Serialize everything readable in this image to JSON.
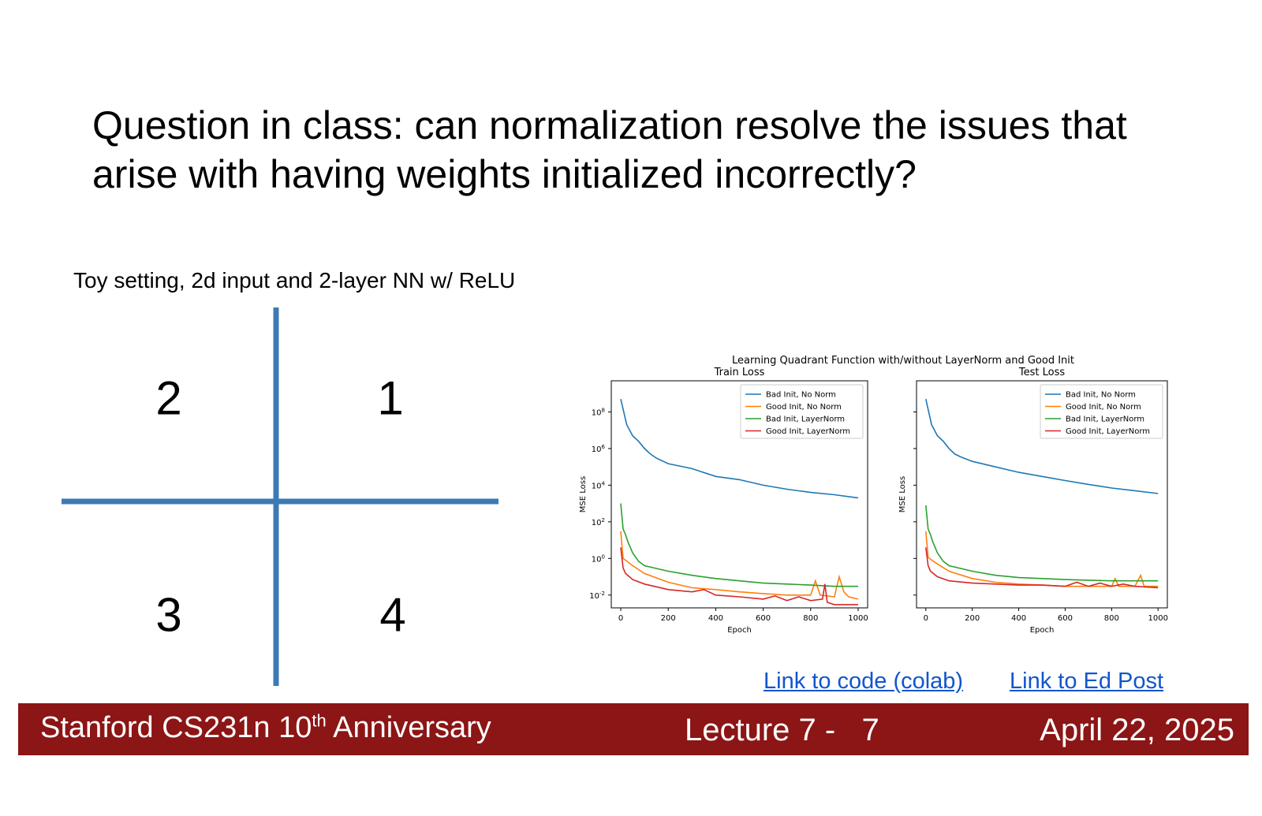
{
  "slide": {
    "title": "Question in class: can normalization resolve the issues that arise with having weights initialized incorrectly?",
    "subtitle": "Toy setting, 2d input and 2-layer NN w/ ReLU",
    "quadrants": [
      "1",
      "2",
      "3",
      "4"
    ],
    "links": {
      "code": "Link to code (colab)",
      "ed": "Link to Ed Post"
    },
    "footer": {
      "course": "Stanford CS231n 10",
      "course_sup": "th",
      "course_suffix": " Anniversary",
      "lecture": "Lecture 7 -   7",
      "date": "April 22, 2025"
    },
    "colors": {
      "footer_bg": "#8c1515",
      "axis_blue": "#3d7ab5",
      "link": "#1155cc"
    }
  },
  "chart_data": {
    "suptitle": "Learning Quadrant Function with/without LayerNorm and Good Init",
    "type": "line",
    "charts": [
      {
        "title": "Train Loss",
        "xlabel": "Epoch",
        "ylabel": "MSE Loss",
        "yscale": "log",
        "xlim": [
          -40,
          1040
        ],
        "ylim": [
          0.002,
          5000000000.0
        ],
        "xticks": [
          "0",
          "200",
          "400",
          "600",
          "800",
          "1000"
        ],
        "yticks": [
          "10^8",
          "10^6",
          "10^4",
          "10^2",
          "10^0",
          "10^-2"
        ],
        "legend": "top-right",
        "series": [
          {
            "name": "Bad Init, No Norm",
            "color": "#1f77b4",
            "x": [
              0,
              25,
              50,
              75,
              100,
              125,
              150,
              200,
              300,
              400,
              500,
              600,
              700,
              800,
              900,
              1000
            ],
            "y": [
              500000000.0,
              20000000.0,
              5000000.0,
              2500000.0,
              1000000.0,
              500000.0,
              300000.0,
              150000.0,
              80000.0,
              30000.0,
              20000.0,
              10000.0,
              6000.0,
              4000.0,
              3000.0,
              2000.0
            ]
          },
          {
            "name": "Good Init, No Norm",
            "color": "#ff7f0e",
            "x": [
              0,
              10,
              20,
              50,
              100,
              200,
              300,
              400,
              500,
              600,
              700,
              800,
              820,
              840,
              900,
              920,
              940,
              960,
              1000
            ],
            "y": [
              30,
              1.0,
              0.8,
              0.4,
              0.15,
              0.05,
              0.025,
              0.02,
              0.015,
              0.012,
              0.01,
              0.01,
              0.06,
              0.01,
              0.008,
              0.1,
              0.015,
              0.008,
              0.006
            ]
          },
          {
            "name": "Bad Init, LayerNorm",
            "color": "#2ca02c",
            "x": [
              0,
              10,
              20,
              30,
              40,
              50,
              75,
              100,
              200,
              300,
              400,
              500,
              600,
              700,
              800,
              900,
              1000
            ],
            "y": [
              1000,
              40,
              20,
              8,
              4,
              2,
              0.7,
              0.4,
              0.2,
              0.12,
              0.08,
              0.06,
              0.045,
              0.04,
              0.035,
              0.03,
              0.03
            ]
          },
          {
            "name": "Good Init, LayerNorm",
            "color": "#d62728",
            "x": [
              0,
              10,
              20,
              50,
              100,
              200,
              300,
              350,
              400,
              500,
              600,
              650,
              700,
              750,
              800,
              850,
              860,
              870,
              900,
              1000
            ],
            "y": [
              4,
              0.3,
              0.15,
              0.07,
              0.04,
              0.02,
              0.015,
              0.02,
              0.01,
              0.008,
              0.006,
              0.009,
              0.005,
              0.008,
              0.005,
              0.006,
              0.04,
              0.004,
              0.003,
              0.003
            ]
          }
        ]
      },
      {
        "title": "Test Loss",
        "xlabel": "Epoch",
        "ylabel": "MSE Loss",
        "yscale": "log",
        "xlim": [
          -40,
          1040
        ],
        "ylim": [
          0.002,
          5000000000.0
        ],
        "xticks": [
          "0",
          "200",
          "400",
          "600",
          "800",
          "1000"
        ],
        "yticks": [],
        "legend": "top-right",
        "series": [
          {
            "name": "Bad Init, No Norm",
            "color": "#1f77b4",
            "x": [
              0,
              25,
              50,
              75,
              100,
              125,
              150,
              200,
              300,
              400,
              500,
              600,
              700,
              800,
              900,
              1000
            ],
            "y": [
              500000000.0,
              20000000.0,
              5000000.0,
              2500000.0,
              1000000.0,
              500000.0,
              350000.0,
              200000.0,
              100000.0,
              50000.0,
              30000.0,
              18000.0,
              11000.0,
              7000.0,
              5000.0,
              3500.0
            ]
          },
          {
            "name": "Good Init, No Norm",
            "color": "#ff7f0e",
            "x": [
              0,
              10,
              20,
              50,
              100,
              200,
              300,
              400,
              500,
              600,
              700,
              800,
              815,
              830,
              900,
              925,
              940,
              1000
            ],
            "y": [
              30,
              1.2,
              0.9,
              0.5,
              0.2,
              0.08,
              0.05,
              0.04,
              0.035,
              0.03,
              0.03,
              0.03,
              0.08,
              0.03,
              0.03,
              0.12,
              0.03,
              0.03
            ]
          },
          {
            "name": "Bad Init, LayerNorm",
            "color": "#2ca02c",
            "x": [
              0,
              10,
              20,
              30,
              40,
              50,
              75,
              100,
              200,
              300,
              400,
              500,
              600,
              700,
              800,
              900,
              1000
            ],
            "y": [
              800,
              40,
              20,
              8,
              4,
              2,
              0.7,
              0.4,
              0.2,
              0.12,
              0.09,
              0.08,
              0.07,
              0.065,
              0.06,
              0.06,
              0.06
            ]
          },
          {
            "name": "Good Init, LayerNorm",
            "color": "#d62728",
            "x": [
              0,
              10,
              20,
              50,
              100,
              200,
              300,
              400,
              500,
              600,
              650,
              700,
              750,
              800,
              850,
              900,
              1000
            ],
            "y": [
              4,
              0.4,
              0.2,
              0.1,
              0.06,
              0.045,
              0.04,
              0.035,
              0.035,
              0.03,
              0.05,
              0.03,
              0.045,
              0.03,
              0.04,
              0.03,
              0.025
            ]
          }
        ]
      }
    ]
  }
}
